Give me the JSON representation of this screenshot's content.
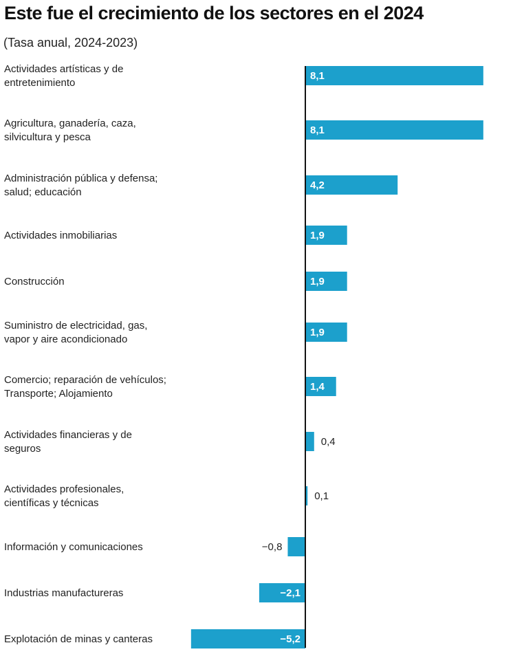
{
  "chart_data": {
    "type": "bar",
    "orientation": "horizontal",
    "title": "Este fue el crecimiento de los sectores en el 2024",
    "subtitle": "(Tasa anual, 2024-2023)",
    "xlabel": "",
    "ylabel": "",
    "xlim": [
      -5.2,
      8.1
    ],
    "grid": false,
    "legend": "none",
    "bar_color": "#1ca0cc",
    "axis_color": "#111111",
    "categories": [
      [
        "Actividades artísticas y de",
        "entretenimiento"
      ],
      [
        "Agricultura, ganadería, caza,",
        "silvicultura y pesca"
      ],
      [
        "Administración pública y defensa;",
        "salud; educación"
      ],
      [
        "Actividades inmobiliarias"
      ],
      [
        "Construcción"
      ],
      [
        "Suministro de electricidad, gas,",
        "vapor y aire acondicionado"
      ],
      [
        "Comercio; reparación de vehículos;",
        "Transporte; Alojamiento"
      ],
      [
        "Actividades financieras y de",
        "seguros"
      ],
      [
        "Actividades profesionales,",
        "científicas y técnicas"
      ],
      [
        "Información y comunicaciones"
      ],
      [
        "Industrias manufactureras"
      ],
      [
        "Explotación de minas y canteras"
      ]
    ],
    "values": [
      8.1,
      8.1,
      4.2,
      1.9,
      1.9,
      1.9,
      1.4,
      0.4,
      0.1,
      -0.8,
      -2.1,
      -5.2
    ],
    "value_labels": [
      "8,1",
      "8,1",
      "4,2",
      "1,9",
      "1,9",
      "1,9",
      "1,4",
      "0,4",
      "0,1",
      "−0,8",
      "−2,1",
      "−5,2"
    ]
  }
}
